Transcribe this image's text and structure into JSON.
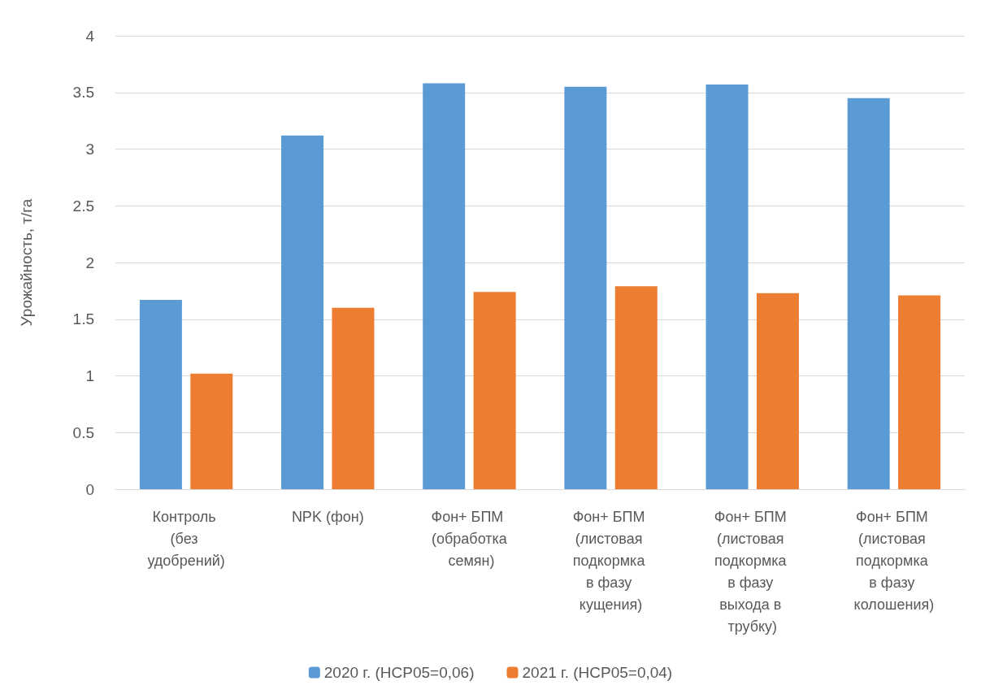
{
  "chart_data": {
    "type": "bar",
    "ylabel": "Урожайность, т/га",
    "categories": [
      "Контроль (без удобрений)",
      "NPK (фон)",
      "Фон+ БПМ (обработка семян)",
      "Фон+ БПМ (листовая подкормка в фазу кущения)",
      "Фон+ БПМ (листовая подкормка в фазу выхода в трубку)",
      "Фон+ БПМ (листовая подкормка в фазу колошения)"
    ],
    "series": [
      {
        "name": "2020 г. (НСР05=0,06)",
        "color": "#5b9bd5",
        "values": [
          1.67,
          3.12,
          3.58,
          3.55,
          3.57,
          3.45
        ]
      },
      {
        "name": "2021 г. (НСР05=0,04)",
        "color": "#ed7d31",
        "values": [
          1.02,
          1.6,
          1.74,
          1.79,
          1.73,
          1.71
        ]
      }
    ],
    "ylim": [
      0,
      4
    ],
    "yticks": [
      0,
      0.5,
      1,
      1.5,
      2,
      2.5,
      3,
      3.5,
      4
    ],
    "grid": "y",
    "legend": "bottom"
  }
}
